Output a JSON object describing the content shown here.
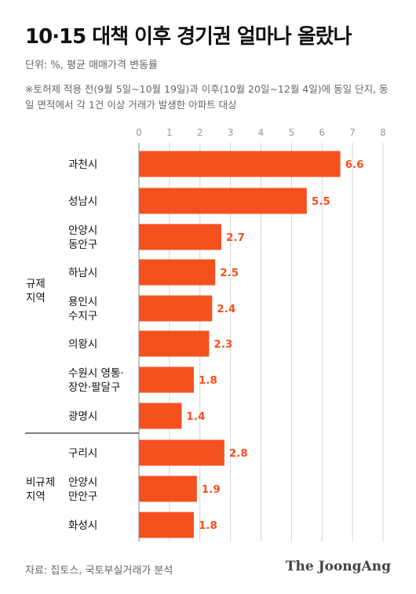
{
  "title": "10·15 대책 이후 경기권 얼마나 올랐나",
  "unit_label": "단위: %, 평균 매매가격 변동률",
  "note": "※토허제 적용 전(9월 5일~10월 19일)과 이후(10월 20일~12월 4일)에 동일 단지, 동일 면적에서 각 1건 이상 거래가 발생한 아파트 대상",
  "source": "자료: 집토스, 국토부실거래가 분석",
  "logo": "The JoongAng",
  "colors": {
    "bar": "#f4511e",
    "value_text": "#f4511e"
  },
  "chart_data": {
    "type": "bar",
    "orientation": "horizontal",
    "xlim": [
      0,
      8
    ],
    "x_ticks": [
      "0",
      "1",
      "2",
      "3",
      "4",
      "5",
      "6",
      "7",
      "8"
    ],
    "grid": true,
    "groups": [
      {
        "name": "규제 지역",
        "categories": [
          "과천시",
          "성남시",
          "안양시 동안구",
          "하남시",
          "용인시 수지구",
          "의왕시",
          "수원시 영통·장안·팔달구",
          "광명시"
        ],
        "values": [
          6.6,
          5.5,
          2.7,
          2.5,
          2.4,
          2.3,
          1.8,
          1.4
        ]
      },
      {
        "name": "비규제 지역",
        "categories": [
          "구리시",
          "안양시 만안구",
          "화성시"
        ],
        "values": [
          2.8,
          1.9,
          1.8
        ]
      }
    ],
    "category_lines": [
      [
        "과천시"
      ],
      [
        "성남시"
      ],
      [
        "안양시",
        "동안구"
      ],
      [
        "하남시"
      ],
      [
        "용인시",
        "수지구"
      ],
      [
        "의왕시"
      ],
      [
        "수원시 영통·",
        "장안·팔달구"
      ],
      [
        "광명시"
      ],
      [
        "구리시"
      ],
      [
        "안양시",
        "만안구"
      ],
      [
        "화성시"
      ]
    ],
    "group_label_lines": [
      [
        "규제",
        "지역"
      ],
      [
        "비규제",
        "지역"
      ]
    ],
    "value_labels": [
      "6.6",
      "5.5",
      "2.7",
      "2.5",
      "2.4",
      "2.3",
      "1.8",
      "1.4",
      "2.8",
      "1.9",
      "1.8"
    ]
  }
}
